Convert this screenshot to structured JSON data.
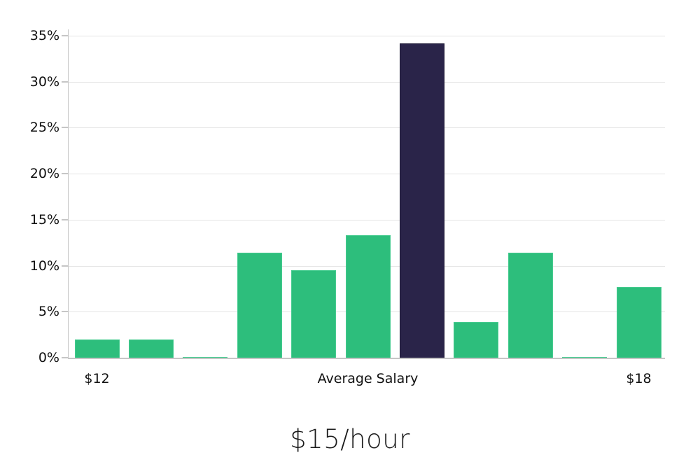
{
  "chart_data": {
    "type": "bar",
    "title": "$15/hour",
    "values": [
      2.0,
      2.0,
      0.1,
      11.4,
      9.5,
      13.3,
      34.2,
      3.9,
      11.4,
      0.1,
      7.7
    ],
    "highlight_index": 6,
    "x_axis_labels": [
      {
        "text": "$12",
        "bar_index": 0
      },
      {
        "text": "Average Salary",
        "bar_index": 5
      },
      {
        "text": "$18",
        "bar_index": 10
      }
    ],
    "y_tick_labels": [
      "0%",
      "5%",
      "10%",
      "15%",
      "20%",
      "25%",
      "30%",
      "35%"
    ],
    "y_tick_values": [
      0,
      5,
      10,
      15,
      20,
      25,
      30,
      35
    ],
    "ylim": [
      0,
      35.9
    ],
    "grid": true,
    "legend": "none",
    "colors": {
      "bar": "#2DBE7C",
      "bar_border": "#45CB8F",
      "highlight_bar": "#2A2449",
      "highlight_border": "#1E1936",
      "gridline": "#E4E4E4",
      "axis_line": "#C6C6C6",
      "label_text": "#111111",
      "title_text": "#1B1B1B",
      "background": "#FFFFFF"
    }
  }
}
